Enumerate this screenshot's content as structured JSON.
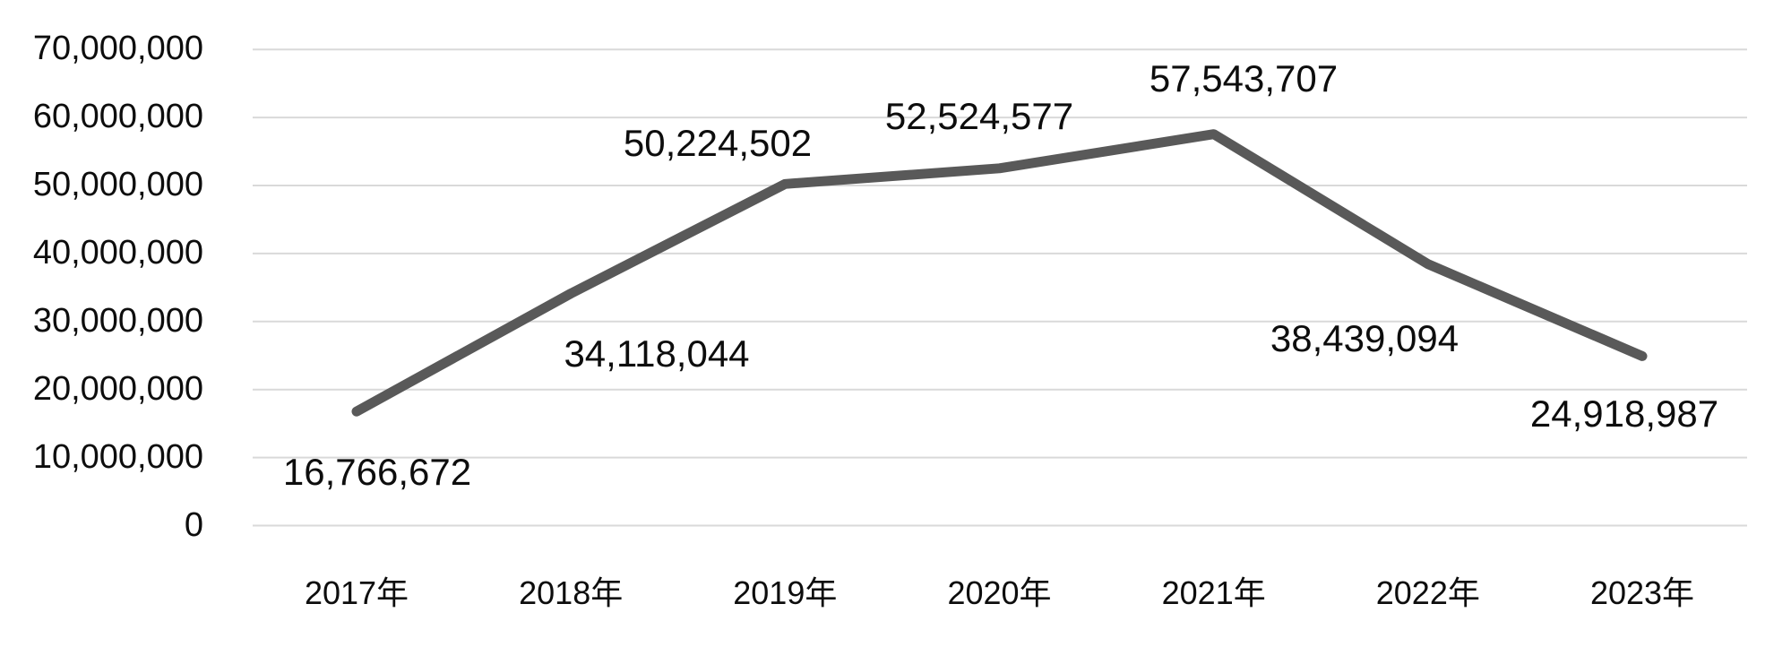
{
  "chart_data": {
    "type": "line",
    "title": "",
    "xlabel": "",
    "ylabel": "",
    "categories": [
      "2017年",
      "2018年",
      "2019年",
      "2020年",
      "2021年",
      "2022年",
      "2023年"
    ],
    "series": [
      {
        "name": "",
        "values": [
          16766672,
          34118044,
          50224502,
          52524577,
          57543707,
          38439094,
          24918987
        ],
        "value_labels": [
          "16,766,672",
          "34,118,044",
          "50,224,502",
          "52,524,577",
          "57,543,707",
          "38,439,094",
          "24,918,987"
        ],
        "color": "#595959"
      }
    ],
    "ylim": [
      0,
      70000000
    ],
    "y_ticks": [
      {
        "value": 70000000,
        "label": "70,000,000"
      },
      {
        "value": 60000000,
        "label": "60,000,000"
      },
      {
        "value": 50000000,
        "label": "50,000,000"
      },
      {
        "value": 40000000,
        "label": "40,000,000"
      },
      {
        "value": 30000000,
        "label": "30,000,000"
      },
      {
        "value": 20000000,
        "label": "20,000,000"
      },
      {
        "value": 10000000,
        "label": "10,000,000"
      },
      {
        "value": 0,
        "label": "0"
      }
    ],
    "grid": "horizontal",
    "legend": "none",
    "gridline_color": "#D9D9D9",
    "label_color": "#0D0D0D",
    "background_color": "#FFFFFF"
  }
}
